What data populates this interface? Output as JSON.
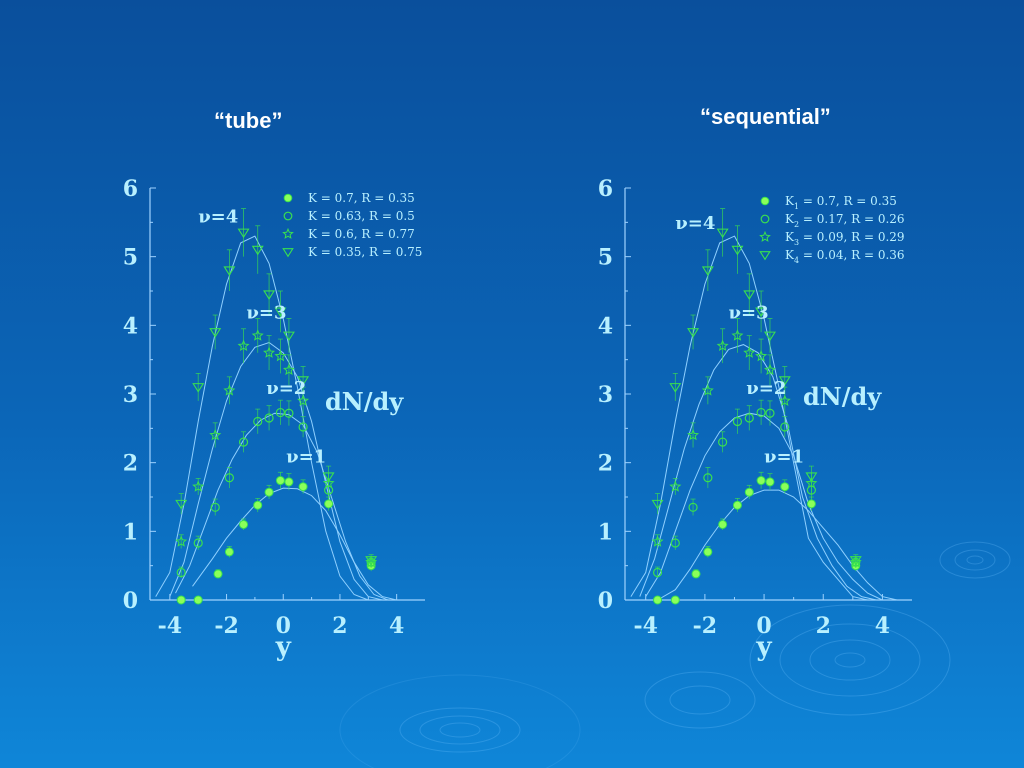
{
  "slide": {
    "left_title": "“tube”",
    "right_title": "“sequential”"
  },
  "colors": {
    "axis": "#9fd3ff",
    "tick_label": "#b8f0ff",
    "curve": "#8fd0ff",
    "marker": "#39e04f",
    "marker_fill": "#8bff5a",
    "annotation": "#b8f0ff",
    "legend": "#b8f0ff"
  },
  "chart_data": [
    {
      "type": "scatter",
      "title": "“tube”",
      "xlabel": "y",
      "ylabel": "dN/dy",
      "xlim": [
        -4.7,
        5.0
      ],
      "ylim": [
        0,
        6
      ],
      "xticks": [
        "-4",
        "-2",
        "0",
        "2",
        "4"
      ],
      "yticks": [
        "0",
        "1",
        "2",
        "3",
        "4",
        "5",
        "6"
      ],
      "legend": [
        {
          "marker": "filled-circle",
          "label": "K = 0.7, R = 0.35"
        },
        {
          "marker": "open-circle",
          "label": "K = 0.63, R = 0.5"
        },
        {
          "marker": "star",
          "label": "K = 0.6, R = 0.77"
        },
        {
          "marker": "triangle-down",
          "label": "K = 0.35, R = 0.75"
        }
      ],
      "annotations": [
        {
          "text": "ν=4",
          "x": -3.0,
          "y": 5.5
        },
        {
          "text": "ν=3",
          "x": -1.3,
          "y": 4.1
        },
        {
          "text": "ν=2",
          "x": -0.6,
          "y": 3.0
        },
        {
          "text": "ν=1",
          "x": 0.1,
          "y": 2.0
        }
      ],
      "series": [
        {
          "name": "ν=1",
          "marker": "filled-circle",
          "x": [
            -3.6,
            -3.0,
            -2.3,
            -1.9,
            -1.4,
            -0.9,
            -0.5,
            -0.1,
            0.2,
            0.7,
            1.6,
            3.1
          ],
          "y": [
            0.0,
            0.0,
            0.38,
            0.7,
            1.1,
            1.38,
            1.57,
            1.74,
            1.72,
            1.65,
            1.4,
            0.5
          ],
          "err": [
            0.05,
            0.05,
            0.06,
            0.08,
            0.08,
            0.1,
            0.1,
            0.12,
            0.12,
            0.1,
            0.1,
            0.08
          ]
        },
        {
          "name": "ν=2",
          "marker": "open-circle",
          "x": [
            -3.6,
            -3.0,
            -2.4,
            -1.9,
            -1.4,
            -0.9,
            -0.5,
            -0.1,
            0.2,
            0.7,
            1.6,
            3.1
          ],
          "y": [
            0.4,
            0.83,
            1.35,
            1.78,
            2.3,
            2.6,
            2.65,
            2.73,
            2.72,
            2.52,
            1.6,
            0.55
          ],
          "err": [
            0.08,
            0.1,
            0.12,
            0.15,
            0.15,
            0.18,
            0.18,
            0.18,
            0.18,
            0.15,
            0.12,
            0.08
          ]
        },
        {
          "name": "ν=3",
          "marker": "star",
          "x": [
            -3.6,
            -3.0,
            -2.4,
            -1.9,
            -1.4,
            -0.9,
            -0.5,
            -0.1,
            0.2,
            0.7,
            1.6,
            3.1
          ],
          "y": [
            0.85,
            1.65,
            2.4,
            3.05,
            3.7,
            3.85,
            3.6,
            3.55,
            3.35,
            2.9,
            1.7,
            0.55
          ],
          "err": [
            0.1,
            0.12,
            0.18,
            0.2,
            0.25,
            0.25,
            0.25,
            0.25,
            0.22,
            0.2,
            0.15,
            0.08
          ]
        },
        {
          "name": "ν=4",
          "marker": "triangle-down",
          "x": [
            -3.6,
            -3.0,
            -2.4,
            -1.9,
            -1.4,
            -0.9,
            -0.5,
            -0.1,
            0.2,
            0.7,
            1.6,
            3.1
          ],
          "y": [
            1.4,
            3.1,
            3.9,
            4.8,
            5.35,
            5.1,
            4.45,
            4.2,
            3.85,
            3.2,
            1.8,
            0.58
          ],
          "err": [
            0.15,
            0.2,
            0.25,
            0.3,
            0.35,
            0.35,
            0.3,
            0.3,
            0.25,
            0.2,
            0.15,
            0.08
          ]
        }
      ],
      "curves": [
        {
          "name": "ν=1",
          "x": [
            -3.2,
            -2.5,
            -2.0,
            -1.5,
            -1.0,
            -0.5,
            0.0,
            0.5,
            1.0,
            1.5,
            2.0,
            2.5,
            3.0,
            3.5,
            4.0
          ],
          "y": [
            0.2,
            0.6,
            0.9,
            1.15,
            1.38,
            1.55,
            1.63,
            1.62,
            1.52,
            1.3,
            0.95,
            0.55,
            0.22,
            0.05,
            0.0
          ]
        },
        {
          "name": "ν=2",
          "x": [
            -3.8,
            -3.3,
            -2.8,
            -2.3,
            -1.8,
            -1.3,
            -0.8,
            -0.3,
            0.2,
            0.7,
            1.2,
            1.7,
            2.2,
            2.7,
            3.2,
            3.7
          ],
          "y": [
            0.1,
            0.5,
            1.05,
            1.6,
            2.05,
            2.4,
            2.62,
            2.72,
            2.7,
            2.55,
            2.15,
            1.5,
            0.85,
            0.35,
            0.08,
            0.0
          ]
        },
        {
          "name": "ν=3",
          "x": [
            -4.0,
            -3.5,
            -3.0,
            -2.5,
            -2.0,
            -1.5,
            -1.0,
            -0.5,
            0.0,
            0.5,
            1.0,
            1.5,
            2.0,
            2.5,
            3.0,
            3.5
          ],
          "y": [
            0.05,
            0.55,
            1.4,
            2.2,
            2.9,
            3.4,
            3.68,
            3.75,
            3.6,
            3.25,
            2.6,
            1.7,
            0.85,
            0.3,
            0.05,
            0.0
          ]
        },
        {
          "name": "ν=4",
          "x": [
            -4.5,
            -4.0,
            -3.5,
            -3.0,
            -2.5,
            -2.0,
            -1.5,
            -1.0,
            -0.5,
            0.0,
            0.5,
            1.0,
            1.5,
            2.0,
            2.5,
            3.0
          ],
          "y": [
            0.05,
            0.4,
            1.4,
            2.6,
            3.7,
            4.6,
            5.2,
            5.3,
            4.9,
            4.1,
            3.1,
            2.0,
            1.0,
            0.35,
            0.08,
            0.0
          ]
        }
      ]
    },
    {
      "type": "scatter",
      "title": "“sequential”",
      "xlabel": "y",
      "ylabel": "dN/dy",
      "xlim": [
        -4.7,
        5.0
      ],
      "ylim": [
        0,
        6
      ],
      "xticks": [
        "-4",
        "-2",
        "0",
        "2",
        "4"
      ],
      "yticks": [
        "0",
        "1",
        "2",
        "3",
        "4",
        "5",
        "6"
      ],
      "legend": [
        {
          "marker": "filled-circle",
          "label": "K",
          "sub": "1",
          "rest": " = 0.7, R = 0.35"
        },
        {
          "marker": "open-circle",
          "label": "K",
          "sub": "2",
          "rest": " = 0.17, R = 0.26"
        },
        {
          "marker": "star",
          "label": "K",
          "sub": "3",
          "rest": " = 0.09, R = 0.29"
        },
        {
          "marker": "triangle-down",
          "label": "K",
          "sub": "4",
          "rest": " = 0.04, R = 0.36"
        }
      ],
      "annotations": [
        {
          "text": "ν=4",
          "x": -3.0,
          "y": 5.4
        },
        {
          "text": "ν=3",
          "x": -1.2,
          "y": 4.1
        },
        {
          "text": "ν=2",
          "x": -0.6,
          "y": 3.0
        },
        {
          "text": "ν=1",
          "x": 0.0,
          "y": 2.0
        }
      ],
      "series": [
        {
          "name": "ν=1",
          "marker": "filled-circle",
          "x": [
            -3.6,
            -3.0,
            -2.3,
            -1.9,
            -1.4,
            -0.9,
            -0.5,
            -0.1,
            0.2,
            0.7,
            1.6,
            3.1
          ],
          "y": [
            0.0,
            0.0,
            0.38,
            0.7,
            1.1,
            1.38,
            1.57,
            1.74,
            1.72,
            1.65,
            1.4,
            0.5
          ],
          "err": [
            0.05,
            0.05,
            0.06,
            0.08,
            0.08,
            0.1,
            0.1,
            0.12,
            0.12,
            0.1,
            0.1,
            0.08
          ]
        },
        {
          "name": "ν=2",
          "marker": "open-circle",
          "x": [
            -3.6,
            -3.0,
            -2.4,
            -1.9,
            -1.4,
            -0.9,
            -0.5,
            -0.1,
            0.2,
            0.7,
            1.6,
            3.1
          ],
          "y": [
            0.4,
            0.83,
            1.35,
            1.78,
            2.3,
            2.6,
            2.65,
            2.73,
            2.72,
            2.52,
            1.6,
            0.55
          ],
          "err": [
            0.08,
            0.1,
            0.12,
            0.15,
            0.15,
            0.18,
            0.18,
            0.18,
            0.18,
            0.15,
            0.12,
            0.08
          ]
        },
        {
          "name": "ν=3",
          "marker": "star",
          "x": [
            -3.6,
            -3.0,
            -2.4,
            -1.9,
            -1.4,
            -0.9,
            -0.5,
            -0.1,
            0.2,
            0.7,
            1.6,
            3.1
          ],
          "y": [
            0.85,
            1.65,
            2.4,
            3.05,
            3.7,
            3.85,
            3.6,
            3.55,
            3.35,
            2.9,
            1.7,
            0.55
          ],
          "err": [
            0.1,
            0.12,
            0.18,
            0.2,
            0.25,
            0.25,
            0.25,
            0.25,
            0.22,
            0.2,
            0.15,
            0.08
          ]
        },
        {
          "name": "ν=4",
          "marker": "triangle-down",
          "x": [
            -3.6,
            -3.0,
            -2.4,
            -1.9,
            -1.4,
            -0.9,
            -0.5,
            -0.1,
            0.2,
            0.7,
            1.6,
            3.1
          ],
          "y": [
            1.4,
            3.1,
            3.9,
            4.8,
            5.35,
            5.1,
            4.45,
            4.2,
            3.85,
            3.2,
            1.8,
            0.58
          ],
          "err": [
            0.15,
            0.2,
            0.25,
            0.3,
            0.35,
            0.35,
            0.3,
            0.3,
            0.25,
            0.2,
            0.15,
            0.08
          ]
        }
      ],
      "curves": [
        {
          "name": "ν=1",
          "x": [
            -3.6,
            -3.0,
            -2.5,
            -2.0,
            -1.5,
            -1.0,
            -0.5,
            0.0,
            0.5,
            1.0,
            1.5,
            2.0,
            2.5,
            3.0,
            3.5,
            4.0,
            4.5
          ],
          "y": [
            0.0,
            0.15,
            0.45,
            0.8,
            1.1,
            1.35,
            1.52,
            1.6,
            1.6,
            1.5,
            1.3,
            1.05,
            0.8,
            0.5,
            0.25,
            0.05,
            0.0
          ]
        },
        {
          "name": "ν=2",
          "x": [
            -4.0,
            -3.5,
            -3.0,
            -2.5,
            -2.0,
            -1.5,
            -1.0,
            -0.5,
            0.0,
            0.5,
            1.0,
            1.5,
            2.0,
            2.5,
            3.0,
            3.5,
            4.0
          ],
          "y": [
            0.05,
            0.4,
            1.0,
            1.6,
            2.1,
            2.45,
            2.65,
            2.72,
            2.68,
            2.5,
            2.1,
            1.4,
            0.9,
            0.55,
            0.3,
            0.1,
            0.0
          ]
        },
        {
          "name": "ν=3",
          "x": [
            -4.2,
            -3.7,
            -3.2,
            -2.7,
            -2.2,
            -1.7,
            -1.2,
            -0.7,
            -0.2,
            0.3,
            0.8,
            1.3,
            1.8,
            2.3,
            2.8,
            3.3,
            3.8
          ],
          "y": [
            0.05,
            0.6,
            1.4,
            2.2,
            2.85,
            3.35,
            3.65,
            3.72,
            3.6,
            3.25,
            2.55,
            1.5,
            0.9,
            0.5,
            0.2,
            0.05,
            0.0
          ]
        },
        {
          "name": "ν=4",
          "x": [
            -4.5,
            -4.0,
            -3.5,
            -3.0,
            -2.5,
            -2.0,
            -1.5,
            -1.0,
            -0.5,
            0.0,
            0.5,
            1.0,
            1.5,
            2.0,
            2.5,
            3.0,
            3.5
          ],
          "y": [
            0.05,
            0.4,
            1.4,
            2.6,
            3.7,
            4.6,
            5.2,
            5.3,
            4.9,
            4.1,
            3.1,
            2.0,
            0.9,
            0.55,
            0.3,
            0.05,
            0.0
          ]
        }
      ]
    }
  ]
}
